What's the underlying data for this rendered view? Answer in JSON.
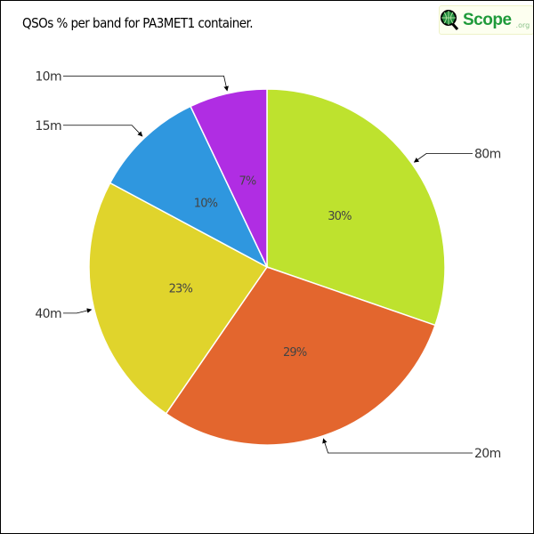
{
  "chart_data": {
    "type": "pie",
    "title": "QSOs % per band for PA3MET1 container.",
    "start": "top",
    "direction": "clockwise",
    "slices": [
      {
        "label": "80m",
        "value": 30,
        "display": "30%",
        "color": "#bee22e"
      },
      {
        "label": "20m",
        "value": 29,
        "display": "29%",
        "color": "#e3662e"
      },
      {
        "label": "40m",
        "value": 23,
        "display": "23%",
        "color": "#e0d42c"
      },
      {
        "label": "15m",
        "value": 10,
        "display": "10%",
        "color": "#2f97df"
      },
      {
        "label": "10m",
        "value": 7,
        "display": "7%",
        "color": "#b02de3"
      }
    ]
  },
  "logo": {
    "text": "Scope",
    "suffix": ".org"
  }
}
